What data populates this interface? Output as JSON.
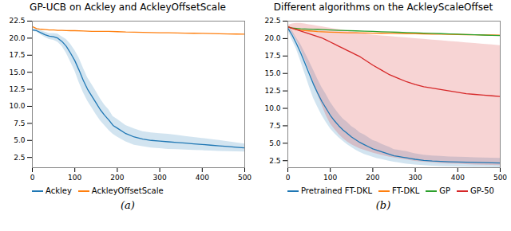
{
  "chart_data": [
    {
      "type": "line",
      "title": "GP-UCB on Ackley and AckleyOffsetScale",
      "annotations": [
        "(a)"
      ],
      "xlim": [
        0,
        500
      ],
      "ylim": [
        1.0,
        22.5
      ],
      "xticks": [
        0,
        100,
        200,
        300,
        400,
        500
      ],
      "yticks": [
        2.5,
        {
          "value": 5.0,
          "label": "5.0"
        },
        7.5,
        {
          "value": 10.0,
          "label": "10.0"
        },
        12.5,
        {
          "value": 15.0,
          "label": "15.0"
        },
        17.5,
        {
          "value": 20.0,
          "label": "20.0"
        },
        22.5
      ],
      "legend": "lower left",
      "series": [
        {
          "name": "Ackley",
          "color": "#1f77b4",
          "x": [
            0,
            10,
            20,
            30,
            40,
            50,
            60,
            70,
            80,
            90,
            100,
            110,
            120,
            130,
            140,
            150,
            160,
            170,
            180,
            190,
            200,
            220,
            240,
            260,
            280,
            300,
            320,
            340,
            360,
            380,
            400,
            420,
            440,
            460,
            480,
            500
          ],
          "values": [
            21.2,
            21.1,
            20.8,
            20.5,
            20.3,
            20.2,
            20.0,
            19.5,
            18.8,
            17.8,
            16.7,
            15.3,
            13.8,
            12.5,
            11.5,
            10.5,
            9.5,
            8.7,
            8.0,
            7.2,
            6.8,
            6.0,
            5.5,
            5.2,
            5.0,
            4.9,
            4.8,
            4.7,
            4.6,
            4.5,
            4.4,
            4.3,
            4.2,
            4.1,
            4.0,
            3.9
          ],
          "lower": [
            21.0,
            20.9,
            20.5,
            20.1,
            19.8,
            19.7,
            19.4,
            18.8,
            17.8,
            16.5,
            15.2,
            13.5,
            12.0,
            10.8,
            9.8,
            8.8,
            7.9,
            7.2,
            6.5,
            5.9,
            5.5,
            4.8,
            4.3,
            4.1,
            3.9,
            3.8,
            3.7,
            3.65,
            3.6,
            3.55,
            3.5,
            3.45,
            3.4,
            3.38,
            3.35,
            3.32
          ],
          "upper": [
            21.4,
            21.3,
            21.1,
            20.9,
            20.7,
            20.7,
            20.6,
            20.2,
            19.8,
            19.1,
            18.2,
            17.1,
            15.6,
            14.2,
            13.2,
            12.2,
            11.1,
            10.2,
            9.5,
            8.5,
            8.1,
            7.2,
            6.7,
            6.3,
            6.1,
            6.0,
            5.9,
            5.75,
            5.6,
            5.45,
            5.3,
            5.15,
            5.0,
            4.82,
            4.65,
            4.48
          ]
        },
        {
          "name": "AckleyOffsetScale",
          "color": "#ff7f0e",
          "x": [
            0,
            10,
            20,
            30,
            40,
            50,
            60,
            70,
            80,
            90,
            100,
            120,
            140,
            160,
            180,
            200,
            220,
            240,
            260,
            280,
            300,
            320,
            340,
            360,
            380,
            400,
            420,
            440,
            460,
            480,
            500
          ],
          "values": [
            21.7,
            21.4,
            21.3,
            21.25,
            21.2,
            21.2,
            21.15,
            21.15,
            21.12,
            21.1,
            21.1,
            21.05,
            21.0,
            21.0,
            21.0,
            20.95,
            20.9,
            20.88,
            20.85,
            20.82,
            20.8,
            20.78,
            20.76,
            20.74,
            20.72,
            20.7,
            20.68,
            20.65,
            20.62,
            20.6,
            20.58
          ]
        }
      ]
    },
    {
      "type": "line",
      "title": "Different algorithms on the AckleyScaleOffset",
      "annotations": [
        "(b)"
      ],
      "xlim": [
        0,
        500
      ],
      "ylim": [
        1.5,
        22.5
      ],
      "xticks": [
        0,
        100,
        200,
        300,
        400,
        500
      ],
      "yticks": [
        2.5,
        {
          "value": 5.0,
          "label": "5.0"
        },
        7.5,
        {
          "value": 10.0,
          "label": "10.0"
        },
        12.5,
        {
          "value": 15.0,
          "label": "15.0"
        },
        17.5,
        {
          "value": 20.0,
          "label": "20.0"
        },
        22.5
      ],
      "legend": "lower left",
      "series": [
        {
          "name": "Pretrained FT-DKL",
          "color": "#1f77b4",
          "x": [
            0,
            10,
            20,
            30,
            40,
            50,
            60,
            70,
            80,
            90,
            100,
            110,
            120,
            130,
            140,
            150,
            160,
            170,
            180,
            190,
            200,
            210,
            220,
            230,
            240,
            250,
            260,
            270,
            280,
            290,
            300,
            320,
            340,
            360,
            380,
            400,
            420,
            440,
            460,
            480,
            500
          ],
          "values": [
            21.5,
            20.5,
            19.3,
            18.0,
            16.5,
            15.0,
            13.5,
            12.2,
            11.0,
            10.0,
            9.0,
            8.2,
            7.5,
            6.9,
            6.4,
            5.9,
            5.5,
            5.1,
            4.8,
            4.5,
            4.2,
            4.0,
            3.8,
            3.6,
            3.4,
            3.2,
            3.1,
            3.0,
            2.9,
            2.8,
            2.7,
            2.55,
            2.45,
            2.4,
            2.35,
            2.32,
            2.28,
            2.25,
            2.22,
            2.2,
            2.18
          ],
          "lower": [
            21.2,
            19.8,
            18.5,
            16.8,
            15.0,
            13.2,
            11.5,
            10.2,
            9.0,
            8.0,
            7.1,
            6.4,
            5.8,
            5.3,
            4.8,
            4.4,
            4.0,
            3.7,
            3.4,
            3.2,
            3.0,
            2.8,
            2.7,
            2.55,
            2.4,
            2.3,
            2.2,
            2.1,
            2.0,
            1.95,
            1.9,
            1.8,
            1.72,
            1.68,
            1.65,
            1.62,
            1.59,
            1.57,
            1.55,
            1.53,
            1.51
          ],
          "upper": [
            21.8,
            21.2,
            20.1,
            19.2,
            18.0,
            16.8,
            15.5,
            14.2,
            13.0,
            12.0,
            10.9,
            10.0,
            9.2,
            8.5,
            8.0,
            7.4,
            7.0,
            6.5,
            6.2,
            5.8,
            5.4,
            5.2,
            4.9,
            4.65,
            4.4,
            4.1,
            4.0,
            3.9,
            3.8,
            3.65,
            3.5,
            3.3,
            3.18,
            3.12,
            3.05,
            3.02,
            2.97,
            2.93,
            2.89,
            2.87,
            2.85
          ]
        },
        {
          "name": "FT-DKL",
          "color": "#ff7f0e",
          "x": [
            0,
            10,
            20,
            30,
            40,
            50,
            60,
            70,
            80,
            90,
            100,
            120,
            140,
            160,
            180,
            200,
            220,
            240,
            260,
            280,
            300,
            320,
            340,
            360,
            380,
            400,
            420,
            440,
            460,
            480,
            500
          ],
          "values": [
            21.7,
            21.45,
            21.3,
            21.2,
            21.15,
            21.1,
            21.05,
            21.0,
            20.98,
            20.95,
            20.92,
            20.88,
            20.84,
            20.82,
            20.8,
            20.78,
            20.76,
            20.74,
            20.72,
            20.7,
            20.68,
            20.66,
            20.64,
            20.62,
            20.6,
            20.58,
            20.56,
            20.54,
            20.52,
            20.5,
            20.48
          ]
        },
        {
          "name": "GP",
          "color": "#2ca02c",
          "x": [
            0,
            10,
            20,
            30,
            40,
            50,
            60,
            70,
            80,
            90,
            100,
            120,
            140,
            160,
            180,
            200,
            220,
            240,
            260,
            280,
            300,
            320,
            340,
            360,
            380,
            400,
            420,
            440,
            460,
            480,
            500
          ],
          "values": [
            21.7,
            21.5,
            21.45,
            21.4,
            21.38,
            21.35,
            21.32,
            21.3,
            21.28,
            21.25,
            21.22,
            21.18,
            21.14,
            21.1,
            21.06,
            21.02,
            20.98,
            20.94,
            20.9,
            20.86,
            20.82,
            20.78,
            20.74,
            20.7,
            20.66,
            20.62,
            20.58,
            20.54,
            20.5,
            20.46,
            20.42
          ]
        },
        {
          "name": "GP-50",
          "color": "#d62728",
          "x": [
            0,
            10,
            20,
            30,
            40,
            50,
            60,
            70,
            80,
            90,
            100,
            110,
            120,
            130,
            140,
            150,
            160,
            170,
            180,
            190,
            200,
            220,
            240,
            260,
            280,
            300,
            320,
            340,
            360,
            380,
            400,
            420,
            440,
            460,
            480,
            500
          ],
          "values": [
            21.7,
            21.5,
            21.3,
            21.1,
            20.9,
            20.7,
            20.5,
            20.3,
            20.1,
            19.8,
            19.5,
            19.2,
            18.9,
            18.6,
            18.3,
            18.0,
            17.7,
            17.4,
            17.0,
            16.6,
            16.2,
            15.5,
            14.8,
            14.3,
            13.8,
            13.4,
            13.1,
            12.9,
            12.7,
            12.5,
            12.3,
            12.1,
            12.0,
            11.9,
            11.8,
            11.7
          ],
          "lower": [
            21.5,
            20.8,
            19.8,
            18.5,
            17.0,
            15.5,
            13.8,
            12.0,
            10.5,
            9.0,
            7.8,
            7.0,
            6.3,
            5.7,
            5.2,
            4.8,
            4.5,
            4.2,
            4.0,
            3.8,
            3.6,
            3.3,
            3.0,
            2.8,
            2.6,
            2.4,
            2.3,
            2.2,
            2.1,
            2.05,
            2.0,
            1.95,
            1.9,
            1.88,
            1.85,
            1.82
          ],
          "upper": [
            21.9,
            22.1,
            22.2,
            22.2,
            22.1,
            22.0,
            21.9,
            21.8,
            21.7,
            21.6,
            21.5,
            21.4,
            21.3,
            21.2,
            21.1,
            21.0,
            20.9,
            20.8,
            20.7,
            20.6,
            20.5,
            20.4,
            20.3,
            20.2,
            20.1,
            20.0,
            19.9,
            19.8,
            19.7,
            19.6,
            19.5,
            19.4,
            19.3,
            19.2,
            19.1,
            19.0
          ]
        }
      ]
    }
  ]
}
